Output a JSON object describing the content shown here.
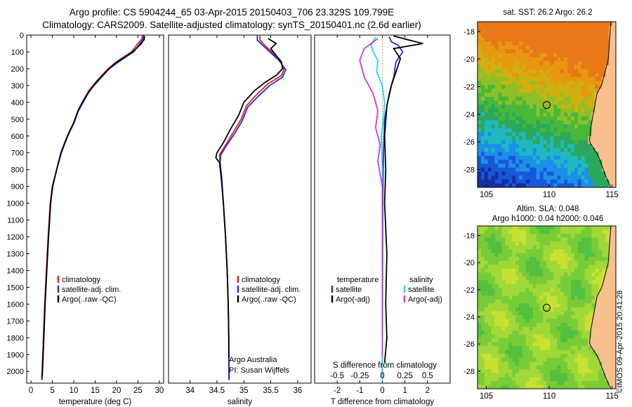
{
  "header": {
    "line1": "Argo profile: CS 5904244_65 03-Apr-2015 20150403_706 23.329S 109.799E",
    "line2": "Climatology: CARS2009. Satellite-adjusted climatology: synTS_20150401.nc (2.6d earlier)"
  },
  "credit": "©IMOS 09-Apr-2015 20:41:28",
  "colors": {
    "climatology": "#e8201c",
    "satellite": "#1a2ee6",
    "argo": "#000000",
    "satellite_s": "#18e0e8",
    "argo_s": "#e030d8"
  },
  "chart_data": [
    {
      "type": "line",
      "name": "temperature-profile",
      "xlabel": "temperature (deg C)",
      "ylabel": "",
      "xlim": [
        -1,
        31
      ],
      "ylim": [
        2070,
        0
      ],
      "xticks": [
        0,
        5,
        10,
        15,
        20,
        25,
        30
      ],
      "yticks": [
        0,
        100,
        200,
        300,
        400,
        500,
        600,
        700,
        800,
        900,
        1000,
        1100,
        1200,
        1300,
        1400,
        1500,
        1600,
        1700,
        1800,
        1900,
        2000
      ],
      "legend": {
        "position": "middle-left",
        "entries": [
          "climatology",
          "satellite-adj. clim.",
          "Argo(..raw -QC)"
        ]
      },
      "series": [
        {
          "name": "climatology",
          "points": [
            [
              26,
              0
            ],
            [
              26,
              20
            ],
            [
              25,
              50
            ],
            [
              23.5,
              100
            ],
            [
              20.5,
              150
            ],
            [
              18,
              200
            ],
            [
              15.5,
              270
            ],
            [
              13.5,
              330
            ],
            [
              12,
              400
            ],
            [
              11,
              450
            ],
            [
              10,
              520
            ],
            [
              8.5,
              600
            ],
            [
              7,
              700
            ],
            [
              6,
              800
            ],
            [
              5,
              900
            ],
            [
              4.5,
              1000
            ],
            [
              4,
              1200
            ],
            [
              3.6,
              1400
            ],
            [
              3.2,
              1600
            ],
            [
              2.9,
              1800
            ],
            [
              2.6,
              2000
            ],
            [
              2.5,
              2050
            ]
          ]
        },
        {
          "name": "satellite-adj. clim.",
          "points": [
            [
              26.3,
              0
            ],
            [
              26.3,
              20
            ],
            [
              25.5,
              50
            ],
            [
              24,
              100
            ],
            [
              21,
              150
            ],
            [
              18.3,
              200
            ],
            [
              15.8,
              270
            ],
            [
              13.7,
              330
            ],
            [
              12.2,
              400
            ],
            [
              11.1,
              450
            ],
            [
              10.1,
              520
            ],
            [
              8.6,
              600
            ],
            [
              7.1,
              700
            ],
            [
              6,
              800
            ],
            [
              5.1,
              900
            ],
            [
              4.6,
              1000
            ],
            [
              4.1,
              1200
            ],
            [
              3.7,
              1400
            ],
            [
              3.3,
              1600
            ],
            [
              3,
              1800
            ],
            [
              2.7,
              2000
            ],
            [
              2.6,
              2050
            ]
          ]
        },
        {
          "name": "Argo(..raw -QC)",
          "points": [
            [
              26.5,
              5
            ],
            [
              26.5,
              25
            ],
            [
              25.8,
              50
            ],
            [
              24.2,
              90
            ],
            [
              22,
              130
            ],
            [
              19.5,
              170
            ],
            [
              17.5,
              220
            ],
            [
              15.2,
              280
            ],
            [
              13.5,
              340
            ],
            [
              12,
              400
            ],
            [
              11,
              450
            ],
            [
              10,
              520
            ],
            [
              8.5,
              600
            ],
            [
              7,
              700
            ],
            [
              6,
              800
            ],
            [
              5,
              900
            ],
            [
              4.6,
              1000
            ],
            [
              4.1,
              1200
            ],
            [
              3.7,
              1400
            ],
            [
              3.3,
              1600
            ],
            [
              3,
              1800
            ],
            [
              2.7,
              2000
            ],
            [
              2.6,
              2030
            ]
          ]
        }
      ]
    },
    {
      "type": "line",
      "name": "salinity-profile",
      "xlabel": "salinity",
      "ylabel": "",
      "xlim": [
        33.6,
        36.25
      ],
      "ylim": [
        2070,
        0
      ],
      "xticks": [
        34,
        34.5,
        35,
        35.5,
        36
      ],
      "legend": {
        "position": "middle-right",
        "entries": [
          "climatology",
          "satellite-adj. clim.",
          "Argo(..raw -QC)"
        ]
      },
      "annotation": [
        "Argo Australia",
        "PI: Susan Wijffels"
      ],
      "series": [
        {
          "name": "climatology",
          "points": [
            [
              35.3,
              0
            ],
            [
              35.3,
              30
            ],
            [
              35.45,
              80
            ],
            [
              35.65,
              140
            ],
            [
              35.75,
              200
            ],
            [
              35.7,
              240
            ],
            [
              35.45,
              290
            ],
            [
              35.25,
              350
            ],
            [
              35.05,
              420
            ],
            [
              34.95,
              500
            ],
            [
              34.8,
              580
            ],
            [
              34.65,
              660
            ],
            [
              34.55,
              710
            ],
            [
              34.55,
              760
            ],
            [
              34.58,
              850
            ],
            [
              34.62,
              1000
            ],
            [
              34.66,
              1200
            ],
            [
              34.69,
              1400
            ],
            [
              34.71,
              1600
            ],
            [
              34.72,
              1800
            ],
            [
              34.73,
              2050
            ]
          ]
        },
        {
          "name": "satellite-adj. clim.",
          "points": [
            [
              35.25,
              0
            ],
            [
              35.25,
              30
            ],
            [
              35.45,
              90
            ],
            [
              35.65,
              150
            ],
            [
              35.78,
              205
            ],
            [
              35.72,
              250
            ],
            [
              35.48,
              300
            ],
            [
              35.28,
              360
            ],
            [
              35.07,
              430
            ],
            [
              34.97,
              510
            ],
            [
              34.82,
              590
            ],
            [
              34.66,
              665
            ],
            [
              34.57,
              715
            ],
            [
              34.56,
              760
            ],
            [
              34.59,
              850
            ],
            [
              34.62,
              1000
            ],
            [
              34.66,
              1200
            ],
            [
              34.69,
              1400
            ],
            [
              34.71,
              1600
            ],
            [
              34.72,
              1800
            ],
            [
              34.72,
              2050
            ]
          ]
        },
        {
          "name": "Argo(..raw -QC)",
          "points": [
            [
              35.45,
              20
            ],
            [
              35.6,
              50
            ],
            [
              35.5,
              80
            ],
            [
              35.6,
              120
            ],
            [
              35.7,
              160
            ],
            [
              35.72,
              200
            ],
            [
              35.6,
              240
            ],
            [
              35.4,
              280
            ],
            [
              35.2,
              330
            ],
            [
              35.0,
              400
            ],
            [
              34.9,
              480
            ],
            [
              34.75,
              560
            ],
            [
              34.62,
              640
            ],
            [
              34.5,
              700
            ],
            [
              34.48,
              730
            ],
            [
              34.55,
              760
            ],
            [
              34.58,
              850
            ],
            [
              34.62,
              1000
            ],
            [
              34.66,
              1200
            ],
            [
              34.69,
              1400
            ],
            [
              34.71,
              1600
            ],
            [
              34.72,
              1800
            ],
            [
              34.72,
              1920
            ]
          ]
        }
      ]
    },
    {
      "type": "line",
      "name": "difference-profile",
      "xlabel": "T difference from climatology",
      "xlabel_top": "S difference from climatology",
      "xlim": [
        -3,
        3
      ],
      "ylim": [
        2070,
        0
      ],
      "xticks": [
        -2,
        -1,
        0,
        1,
        2
      ],
      "xticks_salinity_labels": [
        "-0.5",
        "-0.25",
        "0",
        "0.25",
        "0.5"
      ],
      "legend": {
        "temperature_heading": "temperature",
        "salinity_heading": "salinity",
        "temperature_entries": [
          "satellite",
          "Argo(-adj)"
        ],
        "salinity_entries": [
          "satellite",
          "Argo(-adj)"
        ]
      },
      "series": [
        {
          "name": "T satellite",
          "points": [
            [
              0.3,
              10
            ],
            [
              0.4,
              40
            ],
            [
              0.7,
              60
            ],
            [
              0.9,
              100
            ],
            [
              0.6,
              160
            ],
            [
              0.5,
              250
            ],
            [
              0.3,
              350
            ],
            [
              0.1,
              500
            ],
            [
              0.05,
              700
            ],
            [
              0.02,
              1000
            ],
            [
              0.01,
              1500
            ],
            [
              0,
              2050
            ]
          ]
        },
        {
          "name": "T Argo(-adj)",
          "points": [
            [
              0.5,
              5
            ],
            [
              1.2,
              30
            ],
            [
              1.8,
              50
            ],
            [
              0.5,
              80
            ],
            [
              0.8,
              140
            ],
            [
              0.6,
              220
            ],
            [
              0.4,
              300
            ],
            [
              0.2,
              420
            ],
            [
              0.1,
              600
            ],
            [
              0.15,
              800
            ],
            [
              0.1,
              1000
            ],
            [
              0.2,
              1300
            ],
            [
              0.15,
              1600
            ],
            [
              0.2,
              1800
            ],
            [
              0.1,
              1950
            ]
          ]
        },
        {
          "name": "S satellite",
          "points": [
            [
              -0.3,
              10
            ],
            [
              -0.5,
              60
            ],
            [
              -0.4,
              100
            ],
            [
              -0.2,
              150
            ],
            [
              -0.25,
              220
            ],
            [
              0,
              300
            ],
            [
              0.1,
              400
            ],
            [
              0.05,
              500
            ],
            [
              -0.05,
              600
            ],
            [
              0,
              800
            ],
            [
              0,
              1200
            ],
            [
              0,
              2050
            ]
          ]
        },
        {
          "name": "S Argo(-adj)",
          "points": [
            [
              -0.2,
              20
            ],
            [
              -0.8,
              80
            ],
            [
              -1.0,
              150
            ],
            [
              -0.8,
              250
            ],
            [
              -0.4,
              350
            ],
            [
              -0.2,
              450
            ],
            [
              -0.3,
              550
            ],
            [
              -0.1,
              650
            ],
            [
              -0.2,
              750
            ],
            [
              0,
              900
            ],
            [
              0,
              1200
            ],
            [
              0,
              1500
            ],
            [
              0,
              1900
            ]
          ]
        }
      ]
    },
    {
      "type": "heatmap",
      "name": "sst-map",
      "title": "sat. SST: 26.2 Argo: 26.2",
      "xticks": [
        105,
        110,
        115
      ],
      "yticks": [
        -18,
        -20,
        -22,
        -24,
        -26,
        -28
      ],
      "xlim": [
        104.3,
        115.3
      ],
      "ylim": [
        -29.3,
        -17.3
      ],
      "marker": [
        109.799,
        -23.329
      ]
    },
    {
      "type": "heatmap",
      "name": "sla-map",
      "title_line1": "Altim. SLA: 0.048",
      "title_line2": "Argo h1000: 0.04 h2000: 0.046",
      "xticks": [
        105,
        110,
        115
      ],
      "yticks": [
        -18,
        -20,
        -22,
        -24,
        -26,
        -28
      ],
      "xlim": [
        104.3,
        115.3
      ],
      "ylim": [
        -29.3,
        -17.3
      ],
      "marker": [
        109.799,
        -23.329
      ]
    }
  ]
}
